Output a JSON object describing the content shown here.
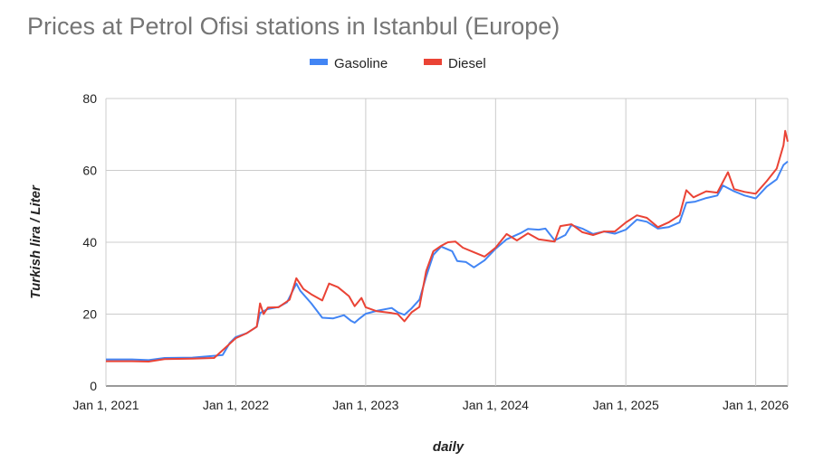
{
  "chart_data": {
    "type": "line",
    "title": "Prices at Petrol Ofisi stations in Istanbul (Europe)",
    "xlabel": "daily",
    "ylabel": "Turkish lira / Liter",
    "legend_position": "top-center",
    "grid": true,
    "x_range": [
      "2021-01-01",
      "2026-04-01"
    ],
    "ylim": [
      0,
      80
    ],
    "y_ticks": [
      0,
      20,
      40,
      60,
      80
    ],
    "y_tick_labels": [
      "0",
      "20",
      "40",
      "60",
      "80"
    ],
    "x_ticks": [
      "2021-01-01",
      "2022-01-01",
      "2023-01-01",
      "2024-01-01",
      "2025-01-01",
      "2026-01-01"
    ],
    "x_tick_labels": [
      "Jan 1, 2021",
      "Jan 1, 2022",
      "Jan 1, 2023",
      "Jan 1, 2024",
      "Jan 1, 2025",
      "Jan 1, 2026"
    ],
    "series": [
      {
        "name": "Gasoline",
        "color": "#4285f4",
        "points": [
          [
            "2021-01-01",
            7.4
          ],
          [
            "2021-03-15",
            7.4
          ],
          [
            "2021-05-01",
            7.2
          ],
          [
            "2021-06-15",
            7.8
          ],
          [
            "2021-09-01",
            7.9
          ],
          [
            "2021-11-01",
            8.4
          ],
          [
            "2021-11-25",
            8.6
          ],
          [
            "2021-12-15",
            12.0
          ],
          [
            "2022-01-01",
            13.6
          ],
          [
            "2022-02-01",
            14.7
          ],
          [
            "2022-03-01",
            16.5
          ],
          [
            "2022-03-10",
            20.3
          ],
          [
            "2022-04-01",
            21.4
          ],
          [
            "2022-05-01",
            22.0
          ],
          [
            "2022-05-25",
            23.3
          ],
          [
            "2022-06-20",
            28.5
          ],
          [
            "2022-07-01",
            26.5
          ],
          [
            "2022-08-01",
            23.0
          ],
          [
            "2022-09-01",
            19.0
          ],
          [
            "2022-10-01",
            18.8
          ],
          [
            "2022-11-01",
            19.7
          ],
          [
            "2022-11-20",
            18.2
          ],
          [
            "2022-12-01",
            17.6
          ],
          [
            "2022-12-15",
            18.8
          ],
          [
            "2023-01-01",
            20.1
          ],
          [
            "2023-02-01",
            20.9
          ],
          [
            "2023-03-15",
            21.7
          ],
          [
            "2023-04-01",
            20.5
          ],
          [
            "2023-04-20",
            19.8
          ],
          [
            "2023-05-10",
            21.6
          ],
          [
            "2023-06-01",
            24.0
          ],
          [
            "2023-06-20",
            30.5
          ],
          [
            "2023-07-10",
            36.5
          ],
          [
            "2023-08-01",
            38.8
          ],
          [
            "2023-09-01",
            37.5
          ],
          [
            "2023-09-15",
            34.8
          ],
          [
            "2023-10-10",
            34.5
          ],
          [
            "2023-11-01",
            33.0
          ],
          [
            "2023-12-01",
            35.0
          ],
          [
            "2024-01-01",
            38.2
          ],
          [
            "2024-02-01",
            40.8
          ],
          [
            "2024-03-10",
            42.5
          ],
          [
            "2024-04-01",
            43.7
          ],
          [
            "2024-05-01",
            43.5
          ],
          [
            "2024-05-20",
            43.8
          ],
          [
            "2024-06-15",
            40.5
          ],
          [
            "2024-07-15",
            42.0
          ],
          [
            "2024-08-01",
            44.8
          ],
          [
            "2024-09-01",
            43.8
          ],
          [
            "2024-10-01",
            42.3
          ],
          [
            "2024-11-01",
            43.0
          ],
          [
            "2024-12-01",
            42.4
          ],
          [
            "2025-01-01",
            43.5
          ],
          [
            "2025-02-01",
            46.3
          ],
          [
            "2025-03-01",
            45.7
          ],
          [
            "2025-04-01",
            43.8
          ],
          [
            "2025-05-01",
            44.2
          ],
          [
            "2025-06-01",
            45.5
          ],
          [
            "2025-06-20",
            51.0
          ],
          [
            "2025-07-15",
            51.3
          ],
          [
            "2025-08-15",
            52.3
          ],
          [
            "2025-09-15",
            53.0
          ],
          [
            "2025-10-01",
            55.8
          ],
          [
            "2025-11-01",
            54.2
          ],
          [
            "2025-12-01",
            53.0
          ],
          [
            "2026-01-01",
            52.2
          ],
          [
            "2026-02-01",
            55.5
          ],
          [
            "2026-03-01",
            57.5
          ],
          [
            "2026-03-20",
            61.5
          ],
          [
            "2026-04-01",
            62.5
          ]
        ]
      },
      {
        "name": "Diesel",
        "color": "#ea4335",
        "points": [
          [
            "2021-01-01",
            6.9
          ],
          [
            "2021-03-15",
            6.9
          ],
          [
            "2021-05-01",
            6.8
          ],
          [
            "2021-06-15",
            7.5
          ],
          [
            "2021-09-01",
            7.6
          ],
          [
            "2021-11-01",
            7.8
          ],
          [
            "2021-12-01",
            10.5
          ],
          [
            "2022-01-01",
            13.3
          ],
          [
            "2022-02-01",
            14.7
          ],
          [
            "2022-03-01",
            16.5
          ],
          [
            "2022-03-10",
            23.0
          ],
          [
            "2022-03-20",
            20.0
          ],
          [
            "2022-04-01",
            21.8
          ],
          [
            "2022-05-01",
            21.9
          ],
          [
            "2022-06-01",
            24.0
          ],
          [
            "2022-06-20",
            30.0
          ],
          [
            "2022-07-10",
            27.0
          ],
          [
            "2022-08-01",
            25.5
          ],
          [
            "2022-09-01",
            23.8
          ],
          [
            "2022-09-20",
            28.5
          ],
          [
            "2022-10-15",
            27.5
          ],
          [
            "2022-11-15",
            25.0
          ],
          [
            "2022-12-01",
            22.2
          ],
          [
            "2022-12-20",
            24.5
          ],
          [
            "2023-01-01",
            21.9
          ],
          [
            "2023-02-01",
            20.8
          ],
          [
            "2023-03-15",
            20.3
          ],
          [
            "2023-04-01",
            20.0
          ],
          [
            "2023-04-20",
            18.0
          ],
          [
            "2023-05-10",
            20.5
          ],
          [
            "2023-06-01",
            22.0
          ],
          [
            "2023-06-20",
            32.0
          ],
          [
            "2023-07-10",
            37.5
          ],
          [
            "2023-08-01",
            39.0
          ],
          [
            "2023-08-20",
            40.0
          ],
          [
            "2023-09-10",
            40.2
          ],
          [
            "2023-10-01",
            38.5
          ],
          [
            "2023-11-01",
            37.2
          ],
          [
            "2023-12-01",
            36.0
          ],
          [
            "2024-01-01",
            38.5
          ],
          [
            "2024-02-01",
            42.3
          ],
          [
            "2024-03-01",
            40.5
          ],
          [
            "2024-04-01",
            42.5
          ],
          [
            "2024-05-01",
            40.8
          ],
          [
            "2024-06-15",
            40.2
          ],
          [
            "2024-07-01",
            44.5
          ],
          [
            "2024-08-01",
            45.0
          ],
          [
            "2024-09-01",
            42.8
          ],
          [
            "2024-10-01",
            42.0
          ],
          [
            "2024-11-01",
            43.0
          ],
          [
            "2024-12-01",
            43.0
          ],
          [
            "2025-01-01",
            45.5
          ],
          [
            "2025-02-01",
            47.5
          ],
          [
            "2025-03-01",
            46.8
          ],
          [
            "2025-04-01",
            44.2
          ],
          [
            "2025-05-01",
            45.5
          ],
          [
            "2025-06-01",
            47.5
          ],
          [
            "2025-06-20",
            54.5
          ],
          [
            "2025-07-10",
            52.5
          ],
          [
            "2025-08-15",
            54.2
          ],
          [
            "2025-09-15",
            53.8
          ],
          [
            "2025-10-15",
            59.5
          ],
          [
            "2025-11-01",
            54.8
          ],
          [
            "2025-12-01",
            54.0
          ],
          [
            "2026-01-01",
            53.5
          ],
          [
            "2026-02-01",
            57.0
          ],
          [
            "2026-03-01",
            60.5
          ],
          [
            "2026-03-20",
            67.0
          ],
          [
            "2026-03-25",
            71.0
          ],
          [
            "2026-04-01",
            68.0
          ]
        ]
      }
    ]
  }
}
